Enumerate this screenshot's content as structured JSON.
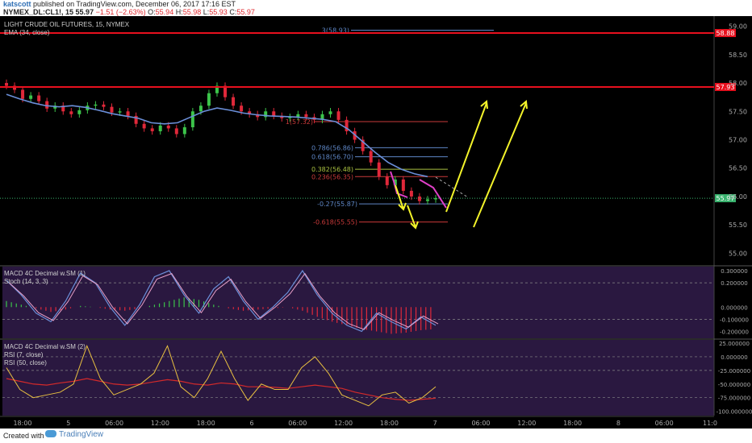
{
  "header": {
    "user": "katscott",
    "published": "published on TradingView.com, December 06, 2017 17:16 EST",
    "symbol": "NYMEX_DL:CL1!, 15",
    "last": "55.97",
    "change": "−1.51 (−2.63%)",
    "o_label": "O:",
    "o": "55.94",
    "h_label": "H:",
    "h": "55.98",
    "l_label": "L:",
    "l": "55.93",
    "c_label": "C:",
    "c": "55.97"
  },
  "legend": {
    "title": "LIGHT CRUDE OIL FUTURES, 15, NYMEX",
    "ema": "EMA (34, close)",
    "macd1": "MACD 4C Decimal w.SM (1)",
    "stoch": "Stoch (14, 3, 3)",
    "macd2": "MACD 4C Decimal w.SM (2)",
    "rsi7": "RSI (7, close)",
    "rsi50": "RSI (50, close)"
  },
  "colors": {
    "candle_up": "#3cc44a",
    "candle_down": "#e0283a",
    "ema": "#6b8fd9",
    "resistance": "#e8101e",
    "arrow": "#f3f32a",
    "trend": "#e040c8",
    "last_price": "#39b36e",
    "fib_blue": "#5f87c7",
    "fib_green": "#a9c040",
    "fib_red": "#c93a3a",
    "stoch_k": "#6b8fd9",
    "stoch_d": "#e8a0c8",
    "rsi7": "#e8c040",
    "rsi50": "#d42a2a",
    "panel_bg": "#2a1840"
  },
  "chart_data": [
    {
      "type": "line",
      "title": "LIGHT CRUDE OIL FUTURES, 15, NYMEX",
      "price_axis": {
        "ticks": [
          "59.00",
          "58.50",
          "58.00",
          "57.50",
          "57.00",
          "56.50",
          "56.00",
          "55.50",
          "55.00"
        ],
        "ylim": [
          54.85,
          59.15
        ]
      },
      "time_axis": {
        "ticks": [
          "18:00",
          "5",
          "06:00",
          "12:00",
          "18:00",
          "6",
          "06:00",
          "12:00",
          "18:00",
          "7",
          "06:00",
          "12:00",
          "18:00",
          "8",
          "06:00",
          "11:0"
        ]
      },
      "series": [
        {
          "name": "",
          "values": [
            57.95,
            57.88,
            57.72,
            57.78,
            57.68,
            57.55,
            57.6,
            57.5,
            57.45,
            57.52,
            57.6,
            57.62,
            57.58,
            57.48,
            57.5,
            57.42,
            57.28,
            57.2,
            57.15,
            57.25,
            57.2,
            57.1,
            57.22,
            57.5,
            57.6,
            57.82,
            57.95,
            57.75,
            57.6,
            57.5,
            57.45,
            57.4,
            57.5,
            57.42,
            57.38,
            57.4,
            57.45,
            57.4,
            57.35,
            57.45,
            57.5,
            57.35,
            57.15,
            57.0,
            56.8,
            56.6,
            56.35,
            56.2,
            56.3,
            56.1,
            56.0,
            55.92,
            55.95,
            55.97
          ]
        },
        {
          "name": "EMA (34, close)",
          "values": [
            57.8,
            57.72,
            57.65,
            57.6,
            57.58,
            57.6,
            57.57,
            57.52,
            57.46,
            57.42,
            57.38,
            57.3,
            57.28,
            57.3,
            57.4,
            57.5,
            57.56,
            57.52,
            57.47,
            57.44,
            57.42,
            57.41,
            57.4,
            57.38,
            57.36,
            57.32,
            57.18,
            56.98,
            56.78,
            56.6,
            56.48,
            56.4,
            56.35
          ]
        }
      ],
      "levels": [
        {
          "label": "58.88",
          "value": 58.88
        },
        {
          "label": "57.93",
          "value": 57.93
        }
      ],
      "last_price_label": "55.97",
      "fibonacci": [
        {
          "label": "3(58.93)",
          "value": 58.93
        },
        {
          "label": "1(57.32)",
          "value": 57.32
        },
        {
          "label": "0.786(56.86)",
          "value": 56.86
        },
        {
          "label": "0.618(56.70)",
          "value": 56.7
        },
        {
          "label": "0.382(56.48)",
          "value": 56.48
        },
        {
          "label": "0.236(56.35)",
          "value": 56.35
        },
        {
          "label": "-0.27(55.87)",
          "value": 55.87
        },
        {
          "label": "-0.618(55.55)",
          "value": 55.55
        }
      ]
    },
    {
      "type": "line",
      "title": "MACD 4C Decimal w.SM (1) / Stoch (14, 3, 3)",
      "axis_ticks": [
        "0.300000",
        "0.200000",
        "0.000000",
        "-0.100000",
        "-0.200000"
      ],
      "ylim": [
        -0.25,
        0.32
      ],
      "series": [
        {
          "name": "MACD 4C Decimal w.SM (1)",
          "values": [
            0.05,
            0.02,
            -0.01,
            -0.04,
            -0.02,
            0.01,
            0.0,
            -0.02,
            -0.03,
            -0.01,
            0.02,
            0.05,
            0.08,
            0.06,
            0.02,
            -0.01,
            -0.03,
            -0.02,
            -0.01,
            0.0,
            -0.03,
            -0.08,
            -0.12,
            -0.15,
            -0.18,
            -0.2,
            -0.22,
            -0.21,
            -0.19,
            -0.18
          ]
        },
        {
          "name": "Stoch (14, 3, 3)",
          "values": [
            0.22,
            0.1,
            -0.05,
            -0.12,
            0.05,
            0.28,
            0.2,
            0.0,
            -0.15,
            0.02,
            0.25,
            0.3,
            0.1,
            -0.05,
            0.15,
            0.25,
            0.05,
            -0.1,
            0.0,
            0.12,
            0.3,
            0.1,
            -0.05,
            -0.15,
            -0.2,
            -0.05,
            -0.12,
            -0.18,
            -0.08,
            -0.15
          ]
        }
      ]
    },
    {
      "type": "line",
      "title": "MACD 4C Decimal w.SM (2) / RSI",
      "axis_ticks": [
        "25.000000",
        "0.000000",
        "-25.000000",
        "-50.000000",
        "-75.000000",
        "-100.000000"
      ],
      "ylim": [
        -105,
        28
      ],
      "series": [
        {
          "name": "RSI (7, close)",
          "values": [
            -20,
            -60,
            -75,
            -70,
            -65,
            -50,
            20,
            -40,
            -70,
            -60,
            -50,
            -30,
            20,
            -55,
            -75,
            -40,
            10,
            -40,
            -80,
            -50,
            -60,
            -60,
            -20,
            0,
            -30,
            -70,
            -80,
            -90,
            -70,
            -65,
            -85,
            -75,
            -55
          ]
        },
        {
          "name": "RSI (50, close)",
          "values": [
            -40,
            -45,
            -50,
            -52,
            -48,
            -45,
            -40,
            -45,
            -50,
            -52,
            -50,
            -46,
            -42,
            -45,
            -50,
            -52,
            -48,
            -50,
            -55,
            -55,
            -56,
            -58,
            -55,
            -52,
            -55,
            -58,
            -65,
            -70,
            -75,
            -78,
            -80,
            -78,
            -76
          ]
        }
      ]
    }
  ]
}
